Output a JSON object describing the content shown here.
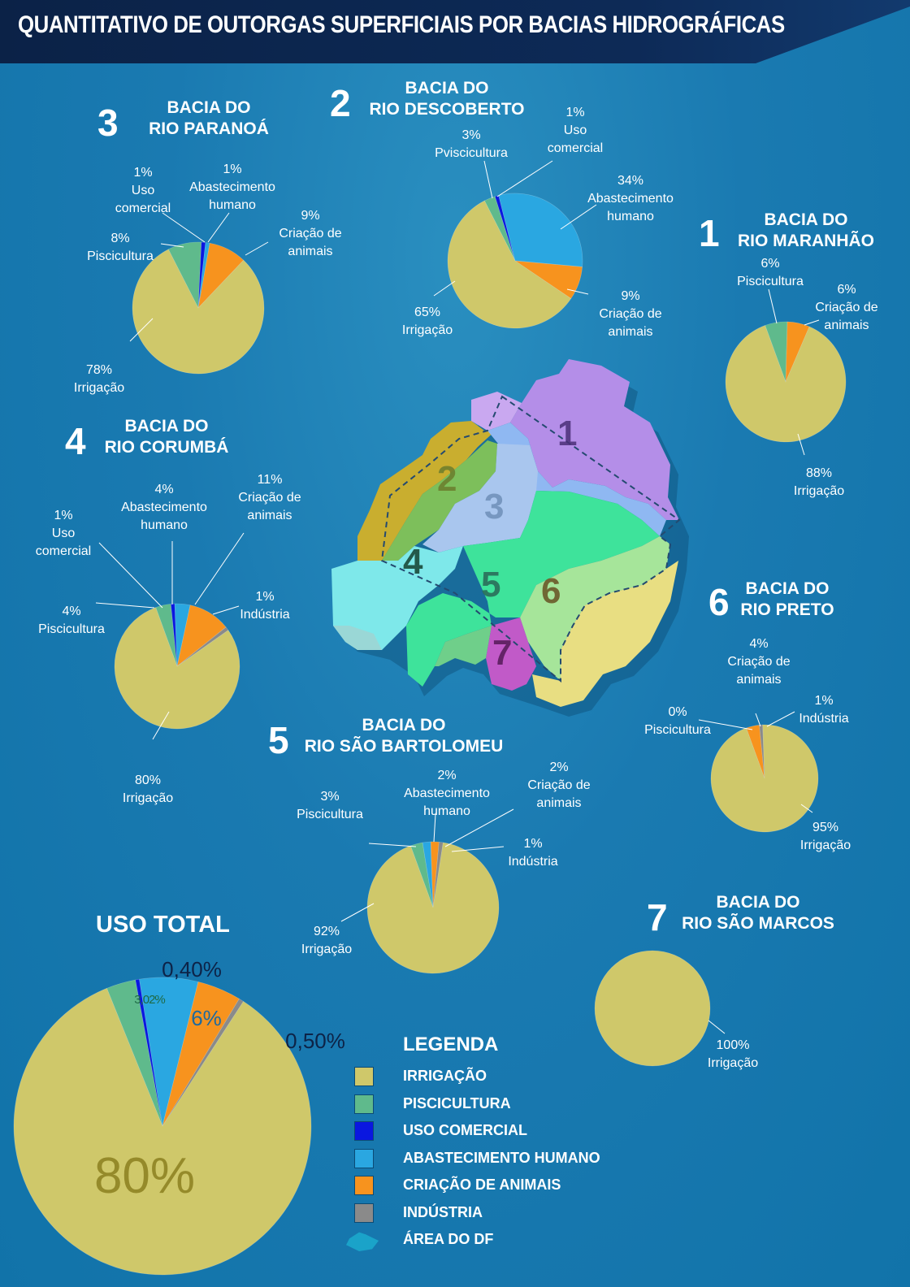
{
  "title": "QUANTITATIVO DE OUTORGAS SUPERFICIAIS POR BACIAS HIDROGRÁFICAS",
  "colors": {
    "irrigacao": "#cfc86a",
    "piscicultura": "#5fba8c",
    "uso_comercial": "#0a17e0",
    "abastecimento": "#2aa7e1",
    "criacao": "#f7931e",
    "industria": "#8a8a8a"
  },
  "chart_data": [
    {
      "type": "pie",
      "number": "3",
      "name": "BACIA DO\nRIO PARANOÁ",
      "slices": [
        {
          "category": "Irrigação",
          "value": 78,
          "label": "78%\nIrrigação"
        },
        {
          "category": "Piscicultura",
          "value": 8,
          "label": "8%\nPiscicultura"
        },
        {
          "category": "Uso comercial",
          "value": 1,
          "label": "1%\nUso\ncomercial"
        },
        {
          "category": "Abastecimento humano",
          "value": 1,
          "label": "1%\nAbastecimento\nhumano"
        },
        {
          "category": "Criação de animais",
          "value": 9,
          "label": "9%\nCriação de\nanimais"
        }
      ]
    },
    {
      "type": "pie",
      "number": "2",
      "name": "BACIA DO\nRIO DESCOBERTO",
      "slices": [
        {
          "category": "Irrigação",
          "value": 65,
          "label": "65%\nIrrigação"
        },
        {
          "category": "Piscicultura",
          "value": 3,
          "label": "3%\nPviscicultura"
        },
        {
          "category": "Uso comercial",
          "value": 1,
          "label": "1%\nUso\ncomercial"
        },
        {
          "category": "Abastecimento humano",
          "value": 34,
          "label": "34%\nAbastecimento\nhumano"
        },
        {
          "category": "Criação de animais",
          "value": 9,
          "label": "9%\nCriação de\nanimais"
        }
      ]
    },
    {
      "type": "pie",
      "number": "1",
      "name": "BACIA DO\nRIO MARANHÃO",
      "slices": [
        {
          "category": "Irrigação",
          "value": 88,
          "label": "88%\nIrrigação"
        },
        {
          "category": "Piscicultura",
          "value": 6,
          "label": "6%\nPiscicultura"
        },
        {
          "category": "Criação de animais",
          "value": 6,
          "label": "6%\nCriação de\nanimais"
        }
      ]
    },
    {
      "type": "pie",
      "number": "4",
      "name": "BACIA DO\nRIO CORUMBÁ",
      "slices": [
        {
          "category": "Irrigação",
          "value": 80,
          "label": "80%\nIrrigação"
        },
        {
          "category": "Piscicultura",
          "value": 4,
          "label": "4%\nPiscicultura"
        },
        {
          "category": "Uso comercial",
          "value": 1,
          "label": "1%\nUso\ncomercial"
        },
        {
          "category": "Abastecimento humano",
          "value": 4,
          "label": "4%\nAbastecimento\nhumano"
        },
        {
          "category": "Criação de animais",
          "value": 11,
          "label": "11%\nCriação de\nanimais"
        },
        {
          "category": "Indústria",
          "value": 1,
          "label": "1%\nIndústria"
        }
      ]
    },
    {
      "type": "pie",
      "number": "6",
      "name": "BACIA DO\nRIO PRETO",
      "slices": [
        {
          "category": "Irrigação",
          "value": 95,
          "label": "95%\nIrrigação"
        },
        {
          "category": "Piscicultura",
          "value": 0,
          "label": "0%\nPiscicultura"
        },
        {
          "category": "Criação de animais",
          "value": 4,
          "label": "4%\nCriação de\nanimais"
        },
        {
          "category": "Indústria",
          "value": 1,
          "label": "1%\nIndústria"
        }
      ]
    },
    {
      "type": "pie",
      "number": "5",
      "name": "BACIA DO\nRIO SÃO BARTOLOMEU",
      "slices": [
        {
          "category": "Irrigação",
          "value": 92,
          "label": "92%\nIrrigação"
        },
        {
          "category": "Piscicultura",
          "value": 3,
          "label": "3%\nPiscicultura"
        },
        {
          "category": "Abastecimento humano",
          "value": 2,
          "label": "2%\nAbastecimento\nhumano"
        },
        {
          "category": "Criação de animais",
          "value": 2,
          "label": "2%\nCriação de\nanimais"
        },
        {
          "category": "Indústria",
          "value": 1,
          "label": "1%\nIndústria"
        }
      ]
    },
    {
      "type": "pie",
      "number": "7",
      "name": "BACIA DO\nRIO SÃO MARCOS",
      "slices": [
        {
          "category": "Irrigação",
          "value": 100,
          "label": "100%\nIrrigação"
        }
      ]
    },
    {
      "type": "pie",
      "name": "USO TOTAL",
      "slices": [
        {
          "category": "Irrigação",
          "value": 80,
          "label": "80%"
        },
        {
          "category": "Piscicultura",
          "value": 3.02,
          "label": "3,02%"
        },
        {
          "category": "Uso comercial",
          "value": 0.4,
          "label": "0,40%"
        },
        {
          "category": "Abastecimento humano",
          "value": 6,
          "label": "6%"
        },
        {
          "category": "Criação de animais",
          "value": 4.5
        },
        {
          "category": "Indústria",
          "value": 0.5,
          "label": "0,50%"
        }
      ]
    }
  ],
  "map": {
    "regions": [
      "1",
      "2",
      "3",
      "4",
      "5",
      "6",
      "7"
    ]
  },
  "legend": {
    "title": "LEGENDA",
    "items": [
      {
        "label": "IRRIGAÇÃO",
        "color": "#cfc86a"
      },
      {
        "label": "PISCICULTURA",
        "color": "#5fba8c"
      },
      {
        "label": "USO COMERCIAL",
        "color": "#0a17e0"
      },
      {
        "label": "ABASTECIMENTO HUMANO",
        "color": "#2aa7e1"
      },
      {
        "label": "CRIAÇÃO DE ANIMAIS",
        "color": "#f7931e"
      },
      {
        "label": "INDÚSTRIA",
        "color": "#8a8a8a"
      },
      {
        "label": "ÁREA DO DF",
        "color": "#1aa3c9"
      }
    ]
  }
}
